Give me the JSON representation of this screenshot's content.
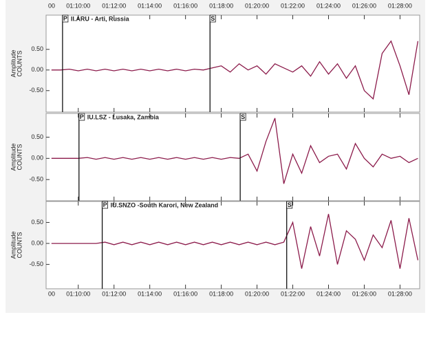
{
  "chart_data": [
    {
      "type": "line",
      "station": "II.ARU - Arti, Russia",
      "ylabel": [
        "Amplitude",
        "COUNTS"
      ],
      "xlim": [
        8.2,
        29.1
      ],
      "ylim": [
        -1.02,
        1.33
      ],
      "xticks": [
        {
          "value": 8,
          "label": "00"
        },
        {
          "value": 10,
          "label": "01:10:00"
        },
        {
          "value": 12,
          "label": "01:12:00"
        },
        {
          "value": 14,
          "label": "01:14:00"
        },
        {
          "value": 16,
          "label": "01:16:00"
        },
        {
          "value": 18,
          "label": "01:18:00"
        },
        {
          "value": 20,
          "label": "01:20:00"
        },
        {
          "value": 22,
          "label": "01:22:00"
        },
        {
          "value": 24,
          "label": "01:24:00"
        },
        {
          "value": 26,
          "label": "01:26:00"
        },
        {
          "value": 28,
          "label": "01:28:00"
        }
      ],
      "yticks": [
        {
          "value": 0.5,
          "label": "0.50"
        },
        {
          "value": 0,
          "label": "0.00"
        },
        {
          "value": -0.5,
          "label": "-0.50"
        }
      ],
      "markers": [
        {
          "label": "P",
          "x": 9.12
        },
        {
          "label": "S",
          "x": 17.37
        }
      ],
      "series": [
        {
          "color": "#8b1a4a",
          "x": [
            8.5,
            9.0,
            9.5,
            10.0,
            10.5,
            11.0,
            11.5,
            12.0,
            12.5,
            13.0,
            13.5,
            14.0,
            14.5,
            15.0,
            15.5,
            16.0,
            16.5,
            17.0,
            17.5,
            18.0,
            18.5,
            19.0,
            19.5,
            20.0,
            20.5,
            21.0,
            21.5,
            22.0,
            22.5,
            23.0,
            23.5,
            24.0,
            24.5,
            25.0,
            25.5,
            26.0,
            26.5,
            27.0,
            27.5,
            28.0,
            28.5,
            29.0
          ],
          "values": [
            0,
            0,
            0.02,
            -0.02,
            0.02,
            -0.02,
            0.02,
            -0.02,
            0.02,
            -0.02,
            0.02,
            -0.02,
            0.02,
            -0.02,
            0.02,
            -0.02,
            0.02,
            0,
            0.05,
            0.1,
            -0.05,
            0.15,
            0,
            0.1,
            -0.1,
            0.15,
            0.05,
            -0.05,
            0.1,
            -0.15,
            0.2,
            -0.1,
            0.15,
            -0.2,
            0.1,
            -0.5,
            -0.7,
            0.4,
            0.7,
            0.1,
            -0.6,
            0.7
          ]
        }
      ]
    },
    {
      "type": "line",
      "station": "IU.LSZ - Lusaka, Zambia",
      "ylabel": [
        "Amplitude",
        "COUNTS"
      ],
      "xlim": [
        8.2,
        29.1
      ],
      "ylim": [
        -1.0,
        1.06
      ],
      "xticks": [
        8,
        10,
        12,
        14,
        16,
        18,
        20,
        22,
        24,
        26,
        28
      ],
      "yticks": [
        {
          "value": 0.5,
          "label": "0.50"
        },
        {
          "value": 0,
          "label": "0.00"
        },
        {
          "value": -0.5,
          "label": "-0.50"
        }
      ],
      "markers": [
        {
          "label": "P",
          "x": 10.04
        },
        {
          "label": "S",
          "x": 19.06
        }
      ],
      "series": [
        {
          "color": "#8b1a4a",
          "x": [
            8.5,
            9.0,
            9.5,
            10.0,
            10.5,
            11.0,
            11.5,
            12.0,
            12.5,
            13.0,
            13.5,
            14.0,
            14.5,
            15.0,
            15.5,
            16.0,
            16.5,
            17.0,
            17.5,
            18.0,
            18.5,
            19.0,
            19.5,
            20.0,
            20.5,
            21.0,
            21.5,
            22.0,
            22.5,
            23.0,
            23.5,
            24.0,
            24.5,
            25.0,
            25.5,
            26.0,
            26.5,
            27.0,
            27.5,
            28.0,
            28.5,
            29.0
          ],
          "values": [
            0,
            0,
            0,
            0,
            0.02,
            -0.02,
            0.02,
            -0.02,
            0.02,
            -0.02,
            0.02,
            -0.02,
            0.02,
            -0.02,
            0.02,
            -0.02,
            0.02,
            -0.02,
            0.02,
            -0.02,
            0.02,
            0,
            0.1,
            -0.3,
            0.4,
            0.95,
            -0.6,
            0.1,
            -0.35,
            0.3,
            -0.1,
            0.05,
            0.1,
            -0.25,
            0.35,
            0,
            -0.2,
            0.1,
            0,
            0.05,
            -0.1,
            0
          ]
        }
      ]
    },
    {
      "type": "line",
      "station": "IU.SNZO -South Karori, New Zealand",
      "ylabel": [
        "Amplitude",
        "COUNTS"
      ],
      "xlim": [
        8.2,
        29.1
      ],
      "ylim": [
        -1.08,
        1.0
      ],
      "xticks": [
        {
          "value": 8,
          "label": "00"
        },
        {
          "value": 10,
          "label": "01:10:00"
        },
        {
          "value": 12,
          "label": "01:12:00"
        },
        {
          "value": 14,
          "label": "01:14:00"
        },
        {
          "value": 16,
          "label": "01:16:00"
        },
        {
          "value": 18,
          "label": "01:18:00"
        },
        {
          "value": 20,
          "label": "01:20:00"
        },
        {
          "value": 22,
          "label": "01:22:00"
        },
        {
          "value": 24,
          "label": "01:24:00"
        },
        {
          "value": 26,
          "label": "01:26:00"
        },
        {
          "value": 28,
          "label": "01:28:00"
        }
      ],
      "yticks": [
        {
          "value": 0.5,
          "label": "0.50"
        },
        {
          "value": 0,
          "label": "0.00"
        },
        {
          "value": -0.5,
          "label": "-0.50"
        }
      ],
      "markers": [
        {
          "label": "P",
          "x": 11.34
        },
        {
          "label": "S",
          "x": 21.66
        }
      ],
      "series": [
        {
          "color": "#8b1a4a",
          "x": [
            8.5,
            9.0,
            9.5,
            10.0,
            10.5,
            11.0,
            11.5,
            12.0,
            12.5,
            13.0,
            13.5,
            14.0,
            14.5,
            15.0,
            15.5,
            16.0,
            16.5,
            17.0,
            17.5,
            18.0,
            18.5,
            19.0,
            19.5,
            20.0,
            20.5,
            21.0,
            21.5,
            22.0,
            22.5,
            23.0,
            23.5,
            24.0,
            24.5,
            25.0,
            25.5,
            26.0,
            26.5,
            27.0,
            27.5,
            28.0,
            28.5,
            29.0
          ],
          "values": [
            0,
            0,
            0,
            0,
            0,
            0,
            0.03,
            -0.03,
            0.03,
            -0.03,
            0.03,
            -0.03,
            0.03,
            -0.03,
            0.03,
            -0.03,
            0.03,
            -0.03,
            0.03,
            -0.03,
            0.03,
            -0.03,
            0.03,
            -0.03,
            0.03,
            -0.03,
            0.03,
            0.5,
            -0.6,
            0.4,
            -0.3,
            0.7,
            -0.5,
            0.3,
            0.1,
            -0.4,
            0.2,
            -0.1,
            0.55,
            -0.6,
            0.6,
            -0.4
          ]
        }
      ]
    }
  ]
}
